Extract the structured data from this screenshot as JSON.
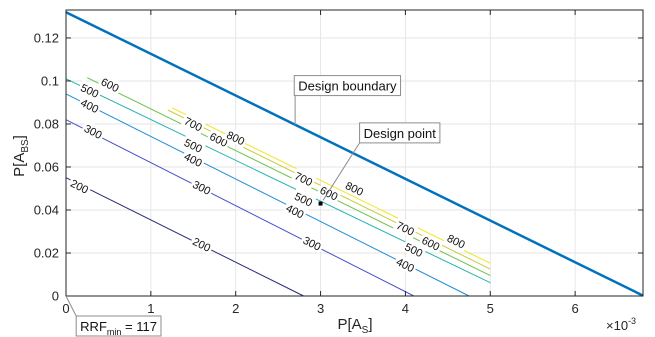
{
  "chart_data": {
    "type": "contour",
    "xlabel_main": "P[A",
    "xlabel_sub": "S",
    "xlabel_end": "]",
    "ylabel_main": "P[A",
    "ylabel_sub": "BS",
    "ylabel_end": "]",
    "x_exponent_base": "×10",
    "x_exponent_power": "-3",
    "xlim": [
      0,
      0.0068
    ],
    "ylim": [
      0,
      0.133
    ],
    "xticks": [
      {
        "value": 0,
        "label": "0"
      },
      {
        "value": 0.001,
        "label": "1"
      },
      {
        "value": 0.002,
        "label": "2"
      },
      {
        "value": 0.003,
        "label": "3"
      },
      {
        "value": 0.004,
        "label": "4"
      },
      {
        "value": 0.005,
        "label": "5"
      },
      {
        "value": 0.006,
        "label": "6"
      }
    ],
    "yticks": [
      {
        "value": 0,
        "label": "0"
      },
      {
        "value": 0.02,
        "label": "0.02"
      },
      {
        "value": 0.04,
        "label": "0.04"
      },
      {
        "value": 0.06,
        "label": "0.06"
      },
      {
        "value": 0.08,
        "label": "0.08"
      },
      {
        "value": 0.1,
        "label": "0.1"
      },
      {
        "value": 0.12,
        "label": "0.12"
      }
    ],
    "grid": true,
    "boundary": {
      "name": "Design boundary",
      "color": "#0072BD",
      "points": [
        [
          0,
          0.132
        ],
        [
          0.0068,
          0.0002
        ]
      ]
    },
    "levels": [
      {
        "level": 200,
        "label": "200",
        "color": "#2a2a7a"
      },
      {
        "level": 300,
        "label": "300",
        "color": "#4a4fc8"
      },
      {
        "level": 400,
        "label": "400",
        "color": "#1e8ed6"
      },
      {
        "level": 500,
        "label": "500",
        "color": "#25b3b0"
      },
      {
        "level": 600,
        "label": "600",
        "color": "#6cc24a"
      },
      {
        "level": 700,
        "label": "700",
        "color": "#c6cc3a"
      },
      {
        "level": 800,
        "label": "800",
        "color": "#f2e41e"
      }
    ],
    "contours": [
      {
        "level": 200,
        "points": [
          [
            0,
            0.055
          ],
          [
            0.0028,
            0
          ]
        ]
      },
      {
        "level": 300,
        "points": [
          [
            0,
            0.082
          ],
          [
            0.0041,
            0
          ]
        ]
      },
      {
        "level": 400,
        "points": [
          [
            0,
            0.094
          ],
          [
            0.00475,
            0
          ]
        ]
      },
      {
        "level": 500,
        "points": [
          [
            0,
            0.101
          ],
          [
            0.005,
            0.0062
          ]
        ]
      },
      {
        "level": 600,
        "points": [
          [
            0.00025,
            0.1015
          ],
          [
            0.005,
            0.0095
          ]
        ]
      },
      {
        "level": 700,
        "points": [
          [
            0.0012,
            0.0865
          ],
          [
            0.005,
            0.0125
          ]
        ]
      },
      {
        "level": 800,
        "points": [
          [
            0.00125,
            0.0875
          ],
          [
            0.005,
            0.0152
          ]
        ]
      }
    ],
    "contour_labels": [
      {
        "text": "200",
        "level": 200,
        "x": 0.00016,
        "y": 0.051
      },
      {
        "text": "200",
        "level": 200,
        "x": 0.0016,
        "y": 0.024
      },
      {
        "text": "300",
        "level": 300,
        "x": 0.00032,
        "y": 0.0765
      },
      {
        "text": "300",
        "level": 300,
        "x": 0.0016,
        "y": 0.0505
      },
      {
        "text": "300",
        "level": 300,
        "x": 0.0029,
        "y": 0.0245
      },
      {
        "text": "400",
        "level": 400,
        "x": 0.00028,
        "y": 0.0885
      },
      {
        "text": "400",
        "level": 400,
        "x": 0.0015,
        "y": 0.0635
      },
      {
        "text": "400",
        "level": 400,
        "x": 0.0027,
        "y": 0.0395
      },
      {
        "text": "400",
        "level": 400,
        "x": 0.004,
        "y": 0.0145
      },
      {
        "text": "500",
        "level": 500,
        "x": 0.00028,
        "y": 0.0955
      },
      {
        "text": "500",
        "level": 500,
        "x": 0.0015,
        "y": 0.07
      },
      {
        "text": "500",
        "level": 500,
        "x": 0.0028,
        "y": 0.045
      },
      {
        "text": "500",
        "level": 500,
        "x": 0.0041,
        "y": 0.0215
      },
      {
        "text": "600",
        "level": 600,
        "x": 0.00052,
        "y": 0.0982
      },
      {
        "text": "600",
        "level": 600,
        "x": 0.0018,
        "y": 0.0728
      },
      {
        "text": "600",
        "level": 600,
        "x": 0.0031,
        "y": 0.0478
      },
      {
        "text": "600",
        "level": 600,
        "x": 0.0043,
        "y": 0.0245
      },
      {
        "text": "700",
        "level": 700,
        "x": 0.0015,
        "y": 0.08
      },
      {
        "text": "700",
        "level": 700,
        "x": 0.0028,
        "y": 0.0545
      },
      {
        "text": "700",
        "level": 700,
        "x": 0.004,
        "y": 0.0315
      },
      {
        "text": "800",
        "level": 800,
        "x": 0.002,
        "y": 0.0735
      },
      {
        "text": "800",
        "level": 800,
        "x": 0.0034,
        "y": 0.05
      },
      {
        "text": "800",
        "level": 800,
        "x": 0.0046,
        "y": 0.0255
      }
    ],
    "design_point": {
      "x": 0.003,
      "y": 0.043
    },
    "annotations": [
      {
        "id": "boundary-annotation",
        "text": "Design boundary",
        "box_x": 0.00269,
        "box_y": 0.1025,
        "tip_x": 0.0027,
        "tip_y": 0.0796
      },
      {
        "id": "design-point-annotation",
        "text": "Design point",
        "box_x": 0.00346,
        "box_y": 0.0805,
        "tip_x": 0.00303,
        "tip_y": 0.0445
      },
      {
        "id": "rrf-annotation",
        "text": "RRF",
        "sub": "min",
        "suffix": " = 117",
        "box_x": 0.00012,
        "box_y": -0.0093,
        "tip_x": 0,
        "tip_y": 0
      }
    ]
  }
}
